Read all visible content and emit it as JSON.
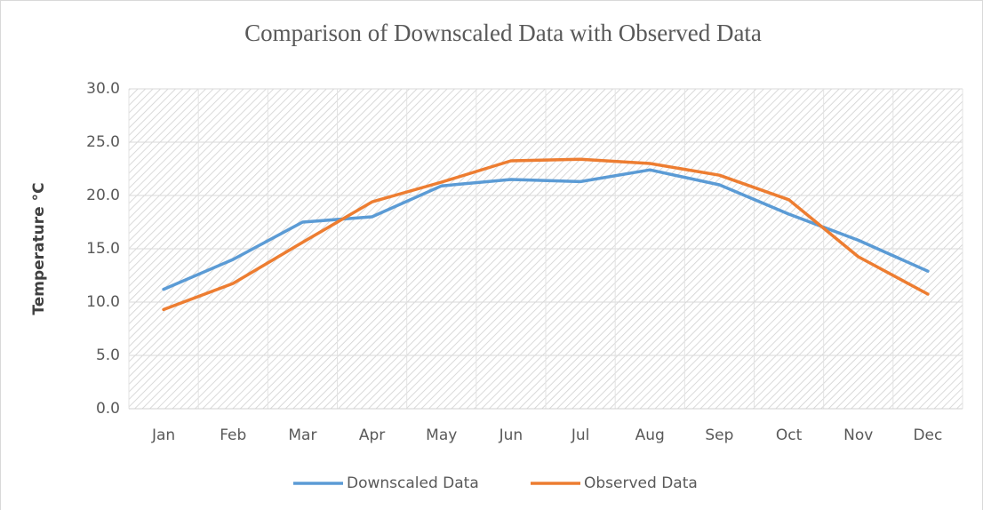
{
  "chart_data": {
    "type": "line",
    "title": "Comparison of Downscaled Data with Observed Data",
    "y_label": "Temperature °C",
    "categories": [
      "Jan",
      "Feb",
      "Mar",
      "Apr",
      "May",
      "Jun",
      "Jul",
      "Aug",
      "Sep",
      "Oct",
      "Nov",
      "Dec"
    ],
    "series": [
      {
        "name": "Downscaled Data",
        "color": "#5b9bd5",
        "values": [
          11.2,
          14.0,
          17.5,
          18.0,
          20.9,
          21.5,
          21.3,
          22.4,
          21.0,
          18.25,
          15.8,
          12.9
        ]
      },
      {
        "name": "Observed Data",
        "color": "#ed7d31",
        "values": [
          9.3,
          11.75,
          15.6,
          19.4,
          21.25,
          23.25,
          23.4,
          23.0,
          21.9,
          19.6,
          14.25,
          10.75
        ]
      }
    ],
    "ylim": [
      0,
      30
    ],
    "yticks": [
      {
        "value": 0,
        "label": "0.0"
      },
      {
        "value": 5,
        "label": "5.0"
      },
      {
        "value": 10,
        "label": "10.0"
      },
      {
        "value": 15,
        "label": "15.0"
      },
      {
        "value": 20,
        "label": "20.0"
      },
      {
        "value": 25,
        "label": "25.0"
      },
      {
        "value": 30,
        "label": "30.0"
      }
    ],
    "grid": true,
    "legend": "bottom"
  }
}
